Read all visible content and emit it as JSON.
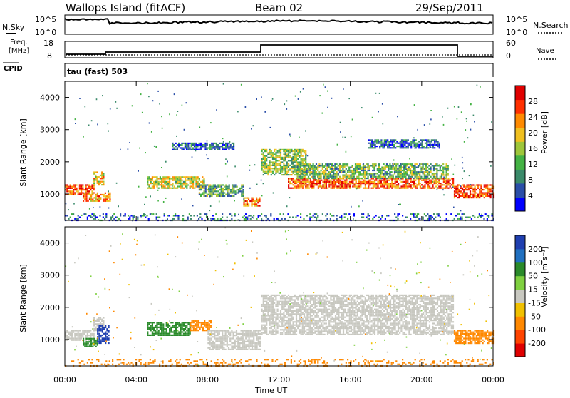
{
  "header": {
    "station": "Wallops Island (fitACF)",
    "beam": "Beam 02",
    "date": "29/Sep/2011"
  },
  "sky_panel": {
    "left_label": "N.Sky",
    "right_label": "N.Search",
    "ticks_left": [
      "10^5",
      "10^0"
    ],
    "ticks_right": [
      "10^5",
      "10^0"
    ]
  },
  "freq_panel": {
    "left_label_1": "Freq.",
    "left_label_2": "[MHz]",
    "ticks_left": [
      "18",
      "8"
    ],
    "right_label": "Nave",
    "ticks_right": [
      "60",
      "0"
    ]
  },
  "cpid": {
    "label": "CPID",
    "value": "tau (fast) 503"
  },
  "power_colorbar": {
    "title": "Power [dB]",
    "ticks": [
      "28",
      "24",
      "20",
      "16",
      "12",
      "8",
      "4"
    ],
    "colors": [
      "#0000ff",
      "#2a4ea8",
      "#3a8a6a",
      "#44b244",
      "#9ec63a",
      "#f0c020",
      "#ff8a00",
      "#ff3000",
      "#e00000"
    ]
  },
  "velocity_colorbar": {
    "title": "Velocity [m s⁻¹]",
    "ticks": [
      "200",
      "100",
      "50",
      "15",
      "-15",
      "-50",
      "-100",
      "-200"
    ],
    "colors": [
      "#1f3fb0",
      "#2070c0",
      "#2a8a2a",
      "#7fd040",
      "#c8c8c0",
      "#f0c000",
      "#ff8800",
      "#ff4400",
      "#e00000"
    ]
  },
  "range_axis": {
    "label": "Slant Range [km]",
    "ticks": [
      "4000",
      "3000",
      "2000",
      "1000"
    ]
  },
  "time_axis": {
    "label": "Time UT",
    "ticks": [
      "00:00",
      "04:00",
      "08:00",
      "12:00",
      "16:00",
      "20:00",
      "00:00"
    ]
  },
  "chart_data": [
    {
      "type": "heatmap",
      "title": "Power",
      "xlabel": "Time UT",
      "ylabel": "Slant Range [km]",
      "xlim": [
        0,
        24
      ],
      "ylim": [
        180,
        4500
      ],
      "colorbar_label": "Power [dB]",
      "bands": [
        {
          "t0": 0.0,
          "t1": 1.6,
          "r0": 1000,
          "r1": 1300,
          "level": 0.8
        },
        {
          "t0": 1.6,
          "t1": 2.2,
          "r0": 1300,
          "r1": 1700,
          "level": 0.6
        },
        {
          "t0": 1.0,
          "t1": 2.5,
          "r0": 800,
          "r1": 1050,
          "level": 0.7
        },
        {
          "t0": 4.6,
          "t1": 7.8,
          "r0": 1200,
          "r1": 1550,
          "level": 0.55
        },
        {
          "t0": 7.5,
          "t1": 10.0,
          "r0": 950,
          "r1": 1300,
          "level": 0.35
        },
        {
          "t0": 10.0,
          "t1": 10.9,
          "r0": 650,
          "r1": 900,
          "level": 0.75
        },
        {
          "t0": 11.0,
          "t1": 13.5,
          "r0": 1600,
          "r1": 2400,
          "level": 0.45
        },
        {
          "t0": 12.5,
          "t1": 21.8,
          "r0": 1200,
          "r1": 1500,
          "level": 0.8
        },
        {
          "t0": 13.0,
          "t1": 21.5,
          "r0": 1500,
          "r1": 1950,
          "level": 0.4
        },
        {
          "t0": 21.8,
          "t1": 24.0,
          "r0": 900,
          "r1": 1300,
          "level": 0.85
        },
        {
          "t0": 6.0,
          "t1": 9.5,
          "r0": 2400,
          "r1": 2600,
          "level": 0.2
        },
        {
          "t0": 17.0,
          "t1": 21.0,
          "r0": 2450,
          "r1": 2700,
          "level": 0.2
        },
        {
          "t0": 0.0,
          "t1": 24.0,
          "r0": 180,
          "r1": 400,
          "level": 0.2
        }
      ]
    },
    {
      "type": "heatmap",
      "title": "Velocity",
      "xlabel": "Time UT",
      "ylabel": "Slant Range [km]",
      "xlim": [
        0,
        24
      ],
      "ylim": [
        180,
        4500
      ],
      "colorbar_label": "Velocity [m s⁻¹]",
      "bands": [
        {
          "t0": 0.0,
          "t1": 1.6,
          "r0": 1000,
          "r1": 1300,
          "velocity": 0
        },
        {
          "t0": 1.6,
          "t1": 2.2,
          "r0": 1300,
          "r1": 1700,
          "velocity": 0
        },
        {
          "t0": 1.0,
          "t1": 1.8,
          "r0": 800,
          "r1": 1050,
          "velocity": 50
        },
        {
          "t0": 1.8,
          "t1": 2.5,
          "r0": 900,
          "r1": 1450,
          "velocity": 200
        },
        {
          "t0": 4.6,
          "t1": 7.0,
          "r0": 1150,
          "r1": 1550,
          "velocity": 50
        },
        {
          "t0": 7.0,
          "t1": 8.2,
          "r0": 1300,
          "r1": 1600,
          "velocity": -50
        },
        {
          "t0": 8.0,
          "t1": 10.9,
          "r0": 700,
          "r1": 1300,
          "velocity": 0
        },
        {
          "t0": 11.0,
          "t1": 21.8,
          "r0": 1150,
          "r1": 2400,
          "velocity": 0
        },
        {
          "t0": 21.8,
          "t1": 24.0,
          "r0": 900,
          "r1": 1300,
          "velocity": -50
        },
        {
          "t0": 0.0,
          "t1": 24.0,
          "r0": 180,
          "r1": 400,
          "velocity": -50
        }
      ]
    }
  ]
}
